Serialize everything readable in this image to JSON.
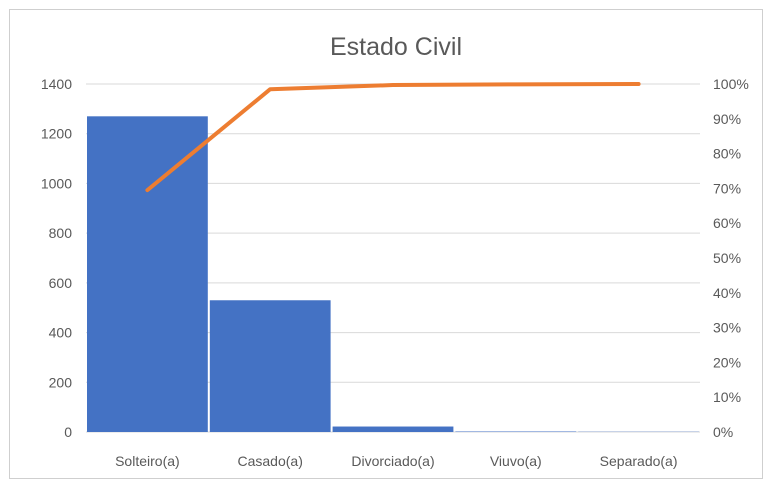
{
  "chart_data": {
    "type": "bar",
    "title": "Estado Civil",
    "categories": [
      "Solteiro(a)",
      "Casado(a)",
      "Divorciado(a)",
      "Viuvo(a)",
      "Separado(a)"
    ],
    "series": [
      {
        "type": "bar",
        "color": "#4472c4",
        "values": [
          1270,
          530,
          22,
          2,
          1
        ]
      },
      {
        "type": "line",
        "axis": "right",
        "color": "#ed7d31",
        "values": [
          0.695,
          0.985,
          0.997,
          0.999,
          1.0
        ]
      }
    ],
    "y_left": {
      "ylim": [
        0,
        1400
      ],
      "ticks": [
        0,
        200,
        400,
        600,
        800,
        1000,
        1200,
        1400
      ],
      "tick_labels": [
        "0",
        "200",
        "400",
        "600",
        "800",
        "1000",
        "1200",
        "1400"
      ]
    },
    "y_right": {
      "ylim": [
        0,
        1
      ],
      "ticks": [
        0,
        0.1,
        0.2,
        0.3,
        0.4,
        0.5,
        0.6,
        0.7,
        0.8,
        0.9,
        1.0
      ],
      "tick_labels": [
        "0%",
        "10%",
        "20%",
        "30%",
        "40%",
        "50%",
        "60%",
        "70%",
        "80%",
        "90%",
        "100%"
      ]
    },
    "grid": true,
    "legend": "none"
  }
}
